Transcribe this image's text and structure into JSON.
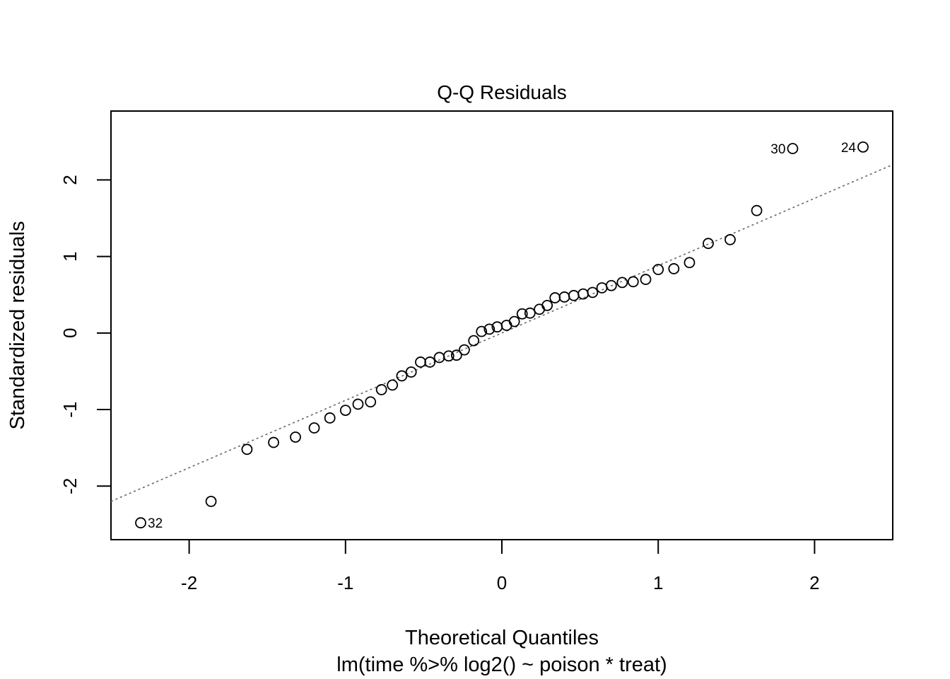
{
  "chart_data": {
    "type": "scatter",
    "title": "Q-Q Residuals",
    "xlabel": "Theoretical Quantiles",
    "subtitle": "lm(time %>% log2() ~ poison * treat)",
    "ylabel": "Standardized residuals",
    "xlim": [
      -2.5,
      2.5
    ],
    "ylim": [
      -2.7,
      2.9
    ],
    "xticks": [
      -2,
      -1,
      0,
      1,
      2
    ],
    "xtick_labels": [
      "-2",
      "-1",
      "0",
      "1",
      "2"
    ],
    "yticks": [
      -2,
      -1,
      0,
      1,
      2
    ],
    "ytick_labels": [
      "-2",
      "-1",
      "0",
      "1",
      "2"
    ],
    "grid": false,
    "reference_line": {
      "style": "dotted",
      "color": "#666666",
      "intercept": 0.0,
      "slope": 0.88
    },
    "points": [
      {
        "x": -2.31,
        "y": -2.48,
        "label": "32"
      },
      {
        "x": -1.86,
        "y": -2.2
      },
      {
        "x": -1.63,
        "y": -1.52
      },
      {
        "x": -1.46,
        "y": -1.43
      },
      {
        "x": -1.32,
        "y": -1.36
      },
      {
        "x": -1.2,
        "y": -1.24
      },
      {
        "x": -1.1,
        "y": -1.11
      },
      {
        "x": -1.0,
        "y": -1.01
      },
      {
        "x": -0.92,
        "y": -0.93
      },
      {
        "x": -0.84,
        "y": -0.9
      },
      {
        "x": -0.77,
        "y": -0.74
      },
      {
        "x": -0.7,
        "y": -0.68
      },
      {
        "x": -0.64,
        "y": -0.56
      },
      {
        "x": -0.58,
        "y": -0.51
      },
      {
        "x": -0.52,
        "y": -0.38
      },
      {
        "x": -0.46,
        "y": -0.38
      },
      {
        "x": -0.4,
        "y": -0.32
      },
      {
        "x": -0.34,
        "y": -0.3
      },
      {
        "x": -0.29,
        "y": -0.29
      },
      {
        "x": -0.24,
        "y": -0.22
      },
      {
        "x": -0.18,
        "y": -0.1
      },
      {
        "x": -0.13,
        "y": 0.02
      },
      {
        "x": -0.08,
        "y": 0.05
      },
      {
        "x": -0.03,
        "y": 0.08
      },
      {
        "x": 0.03,
        "y": 0.1
      },
      {
        "x": 0.08,
        "y": 0.15
      },
      {
        "x": 0.13,
        "y": 0.25
      },
      {
        "x": 0.18,
        "y": 0.26
      },
      {
        "x": 0.24,
        "y": 0.31
      },
      {
        "x": 0.29,
        "y": 0.36
      },
      {
        "x": 0.34,
        "y": 0.46
      },
      {
        "x": 0.4,
        "y": 0.47
      },
      {
        "x": 0.46,
        "y": 0.49
      },
      {
        "x": 0.52,
        "y": 0.51
      },
      {
        "x": 0.58,
        "y": 0.53
      },
      {
        "x": 0.64,
        "y": 0.59
      },
      {
        "x": 0.7,
        "y": 0.62
      },
      {
        "x": 0.77,
        "y": 0.66
      },
      {
        "x": 0.84,
        "y": 0.67
      },
      {
        "x": 0.92,
        "y": 0.7
      },
      {
        "x": 1.0,
        "y": 0.83
      },
      {
        "x": 1.1,
        "y": 0.84
      },
      {
        "x": 1.2,
        "y": 0.92
      },
      {
        "x": 1.32,
        "y": 1.17
      },
      {
        "x": 1.46,
        "y": 1.22
      },
      {
        "x": 1.63,
        "y": 1.6
      },
      {
        "x": 1.86,
        "y": 2.41,
        "label": "30"
      },
      {
        "x": 2.31,
        "y": 2.43,
        "label": "24"
      }
    ]
  }
}
